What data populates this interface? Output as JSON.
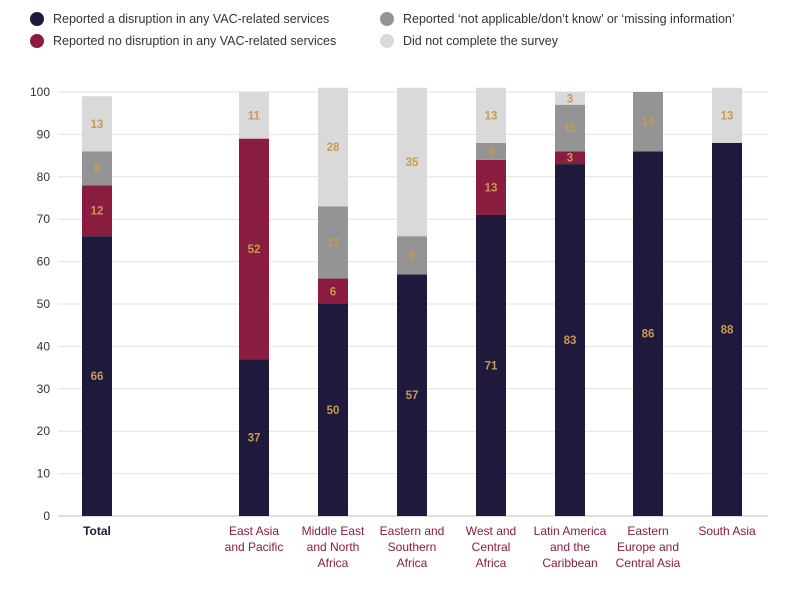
{
  "chart_data": {
    "type": "bar",
    "stacked": true,
    "categories": [
      [
        "Total"
      ],
      [
        "East Asia",
        "and Pacific"
      ],
      [
        "Middle East",
        "and North",
        "Africa"
      ],
      [
        "Eastern and",
        "Southern",
        "Africa"
      ],
      [
        "West and",
        "Central",
        "Africa"
      ],
      [
        "Latin America",
        "and the",
        "Caribbean"
      ],
      [
        "Eastern",
        "Europe and",
        "Central Asia"
      ],
      [
        "South Asia"
      ]
    ],
    "series": [
      {
        "name": "Reported a disruption in any VAC-related services",
        "color": "#1f1a3c",
        "values": [
          66,
          37,
          50,
          57,
          71,
          83,
          86,
          88
        ]
      },
      {
        "name": "Reported no disruption in any VAC-related services",
        "color": "#8a1c40",
        "values": [
          12,
          52,
          6,
          0,
          13,
          3,
          0,
          0
        ]
      },
      {
        "name": "Reported ‘not applicable/don’t know’ or ‘missing information’",
        "color": "#949494",
        "values": [
          8,
          0,
          17,
          9,
          4,
          11,
          14,
          0
        ]
      },
      {
        "name": "Did not complete the survey",
        "color": "#d9d9d9",
        "values": [
          13,
          11,
          28,
          35,
          13,
          3,
          0,
          13
        ]
      }
    ],
    "ylim": [
      0,
      100
    ],
    "yticks": [
      0,
      10,
      20,
      30,
      40,
      50,
      60,
      70,
      80,
      90,
      100
    ],
    "grid": true,
    "legend_position": "top",
    "label_color": "#c79a4e",
    "category_colors": {
      "total": "#1f1a3c",
      "region": "#8a1c40"
    }
  }
}
